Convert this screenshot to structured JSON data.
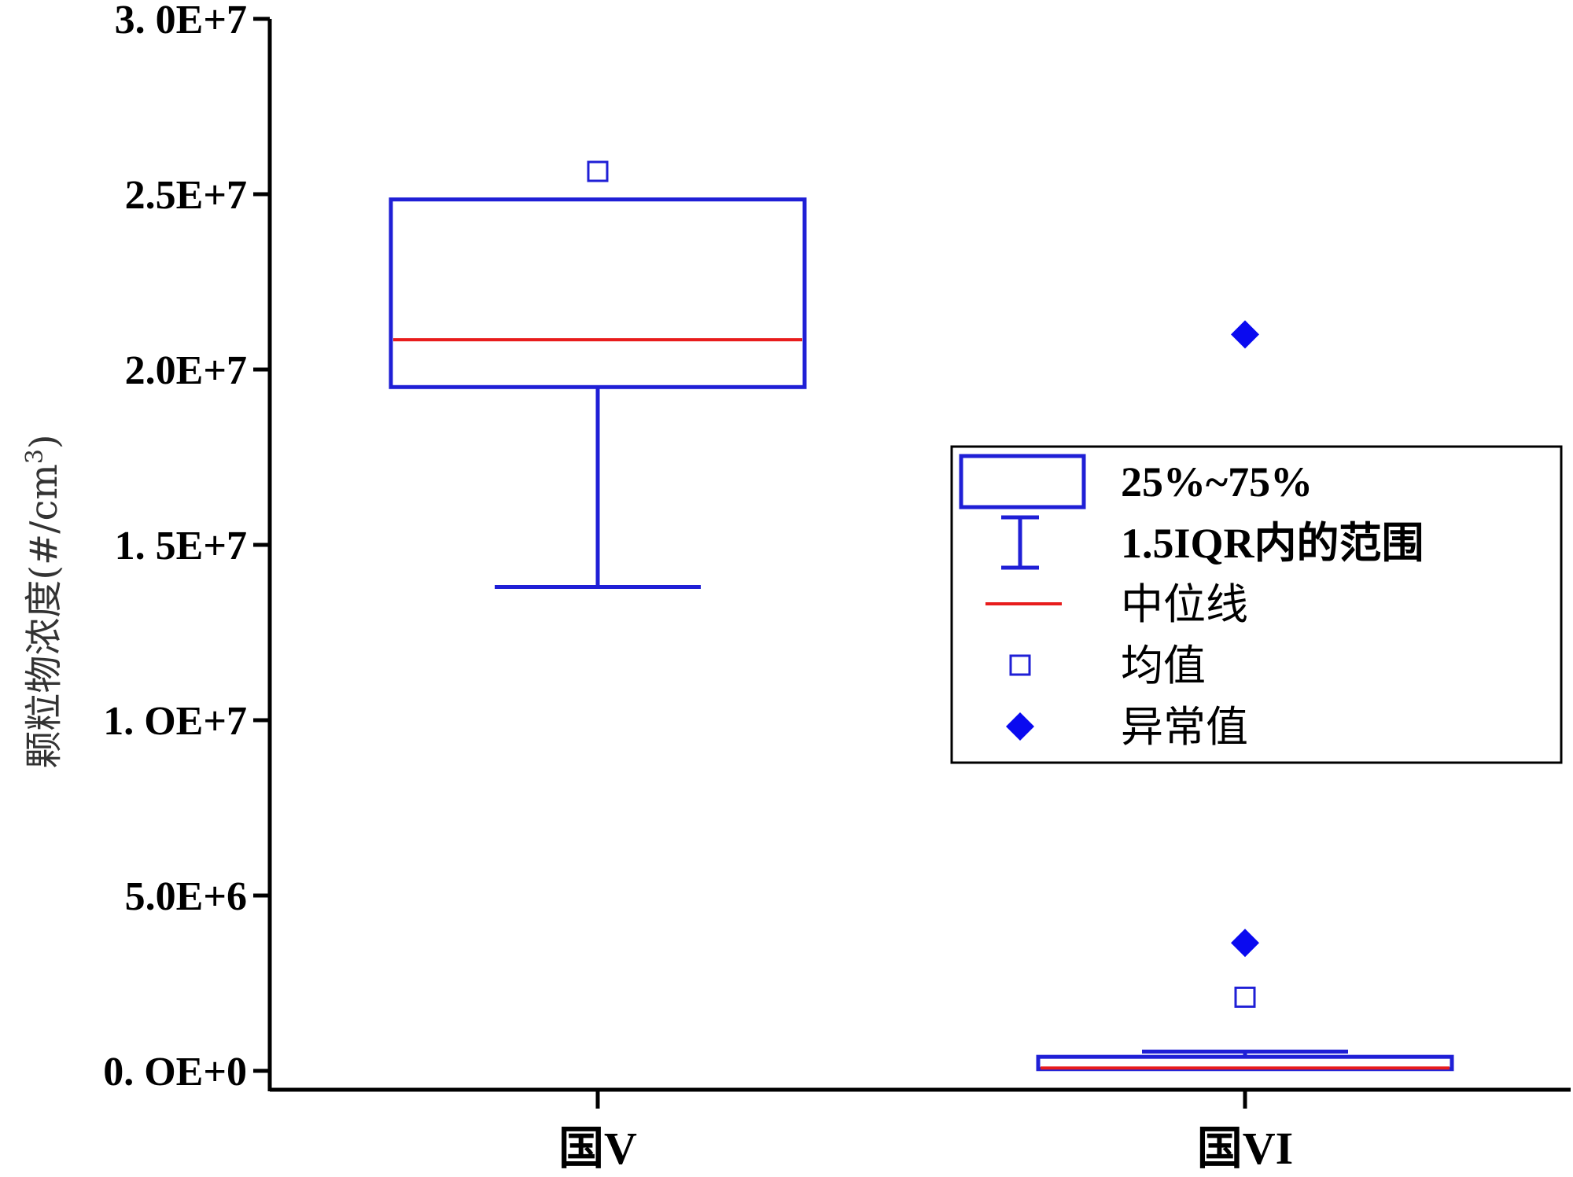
{
  "chart_data": {
    "type": "box",
    "title": "",
    "xlabel": "",
    "ylabel": "颗粒物浓度(#/cm",
    "ylabel_superscript": "3",
    "ylabel_close": ")",
    "ylim": [
      0,
      30000000
    ],
    "y_ticks": [
      {
        "value": 0,
        "label": "0. OE+0"
      },
      {
        "value": 5000000,
        "label": "5.0E+6"
      },
      {
        "value": 10000000,
        "label": "1. OE+7"
      },
      {
        "value": 15000000,
        "label": "1. 5E+7"
      },
      {
        "value": 20000000,
        "label": "2.0E+7"
      },
      {
        "value": 25000000,
        "label": "2.5E+7"
      },
      {
        "value": 30000000,
        "label": "3. 0E+7"
      }
    ],
    "categories": [
      "国V",
      "国VI"
    ],
    "boxes": [
      {
        "category": "国V",
        "q1": 19500000,
        "median": 20850000,
        "q3": 24850000,
        "whisker_low": 13800000,
        "whisker_high": 24850000,
        "mean": 25650000,
        "outliers": []
      },
      {
        "category": "国VI",
        "q1": 50000,
        "median": 80000,
        "q3": 400000,
        "whisker_low": 50000,
        "whisker_high": 550000,
        "mean": 2100000,
        "outliers": [
          21000000,
          3650000
        ]
      }
    ],
    "colors": {
      "box": "#1f1fd6",
      "median": "#e81c1c",
      "mean": "#1f1fd6",
      "outlier": "#0a0af0",
      "axis": "#000000"
    },
    "legend": {
      "position": "right-center",
      "entries": [
        {
          "label": "25%~75%",
          "symbol": "box"
        },
        {
          "label": "1.5IQR内的范围",
          "symbol": "whisker"
        },
        {
          "label": "中位线",
          "symbol": "median"
        },
        {
          "label": "均值",
          "symbol": "mean"
        },
        {
          "label": "异常值",
          "symbol": "outlier"
        }
      ]
    }
  }
}
